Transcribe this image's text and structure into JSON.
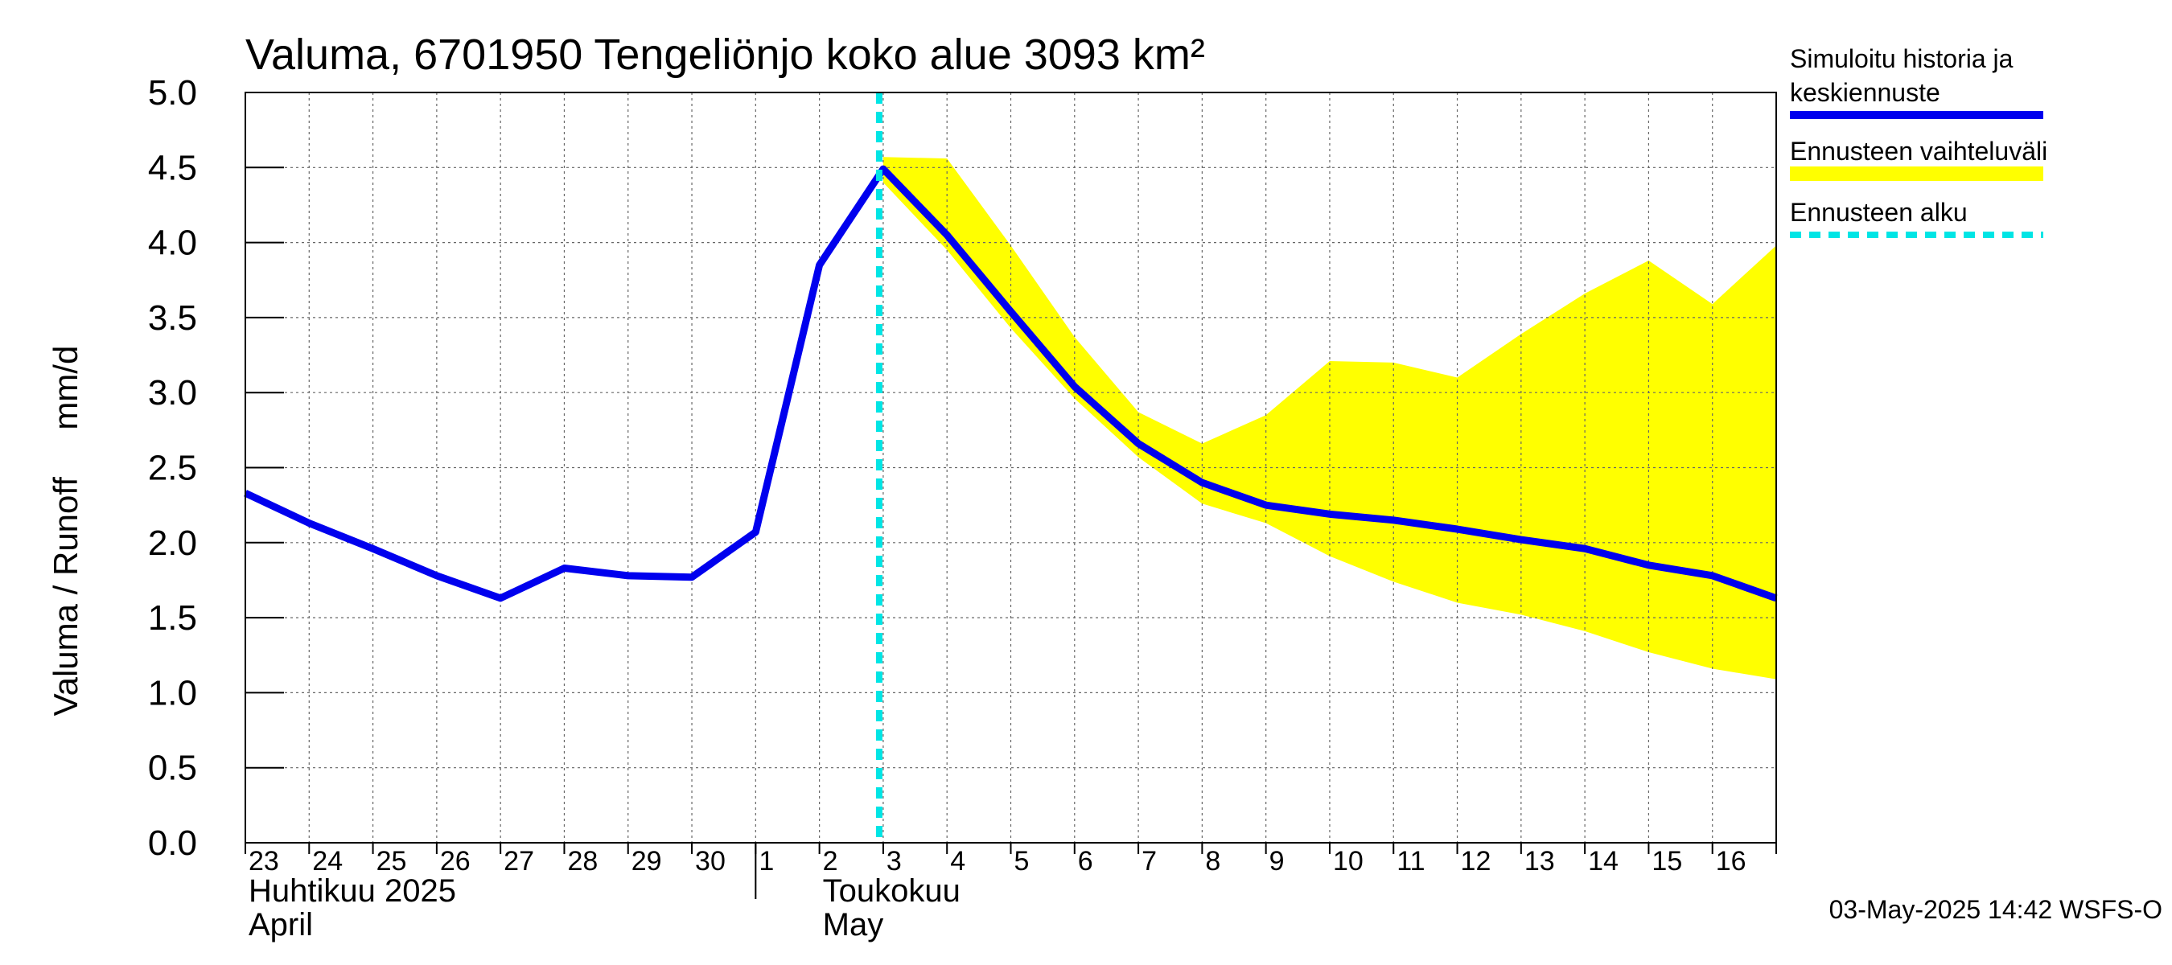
{
  "chart_data": {
    "type": "line",
    "title": "Valuma, 6701950 Tengeliönjo koko alue 3093 km²",
    "ylabel": "Valuma / Runoff     mm/d",
    "ylim": [
      0,
      5
    ],
    "y_ticks": [
      "0.0",
      "0.5",
      "1.0",
      "1.5",
      "2.0",
      "2.5",
      "3.0",
      "3.5",
      "4.0",
      "4.5",
      "5.0"
    ],
    "x_tick_labels": [
      "23",
      "24",
      "25",
      "26",
      "27",
      "28",
      "29",
      "30",
      "1",
      "2",
      "3",
      "4",
      "5",
      "6",
      "7",
      "8",
      "9",
      "10",
      "11",
      "12",
      "13",
      "14",
      "15",
      "16"
    ],
    "month_labels": [
      {
        "line1": "Huhtikuu  2025",
        "line2": "April"
      },
      {
        "line1": "Toukokuu",
        "line2": "May"
      }
    ],
    "grid": true,
    "forecast_start_index": 10,
    "series": [
      {
        "name": "Simuloitu historia ja keskiennuste",
        "color": "#0000ee",
        "values": [
          2.33,
          2.13,
          1.96,
          1.78,
          1.63,
          1.83,
          1.78,
          1.77,
          2.07,
          3.85,
          4.49,
          4.05,
          3.54,
          3.04,
          2.66,
          2.4,
          2.25,
          2.19,
          2.15,
          2.09,
          2.02,
          1.96,
          1.85,
          1.78,
          1.63
        ]
      },
      {
        "name": "Ennusteen vaihteluväli",
        "color": "#ffff00",
        "upper": [
          4.57,
          4.56,
          3.98,
          3.37,
          2.87,
          2.66,
          2.85,
          3.21,
          3.2,
          3.1,
          3.39,
          3.66,
          3.88,
          3.59,
          3.98
        ],
        "lower": [
          4.4,
          3.95,
          3.43,
          2.96,
          2.57,
          2.26,
          2.13,
          1.91,
          1.74,
          1.6,
          1.52,
          1.41,
          1.27,
          1.16,
          1.09
        ]
      }
    ],
    "legend": {
      "placement": "right",
      "entries": [
        {
          "line1": "Simuloitu historia ja",
          "line2": "keskiennuste",
          "color": "#0000ee",
          "style": "solid"
        },
        {
          "line1": "Ennusteen vaihteluväli",
          "line2": "",
          "color": "#ffff00",
          "style": "band"
        },
        {
          "line1": "Ennusteen alku",
          "line2": "",
          "color": "#00e5e5",
          "style": "dashed"
        }
      ]
    },
    "timestamp": "03-May-2025 14:42 WSFS-O"
  }
}
